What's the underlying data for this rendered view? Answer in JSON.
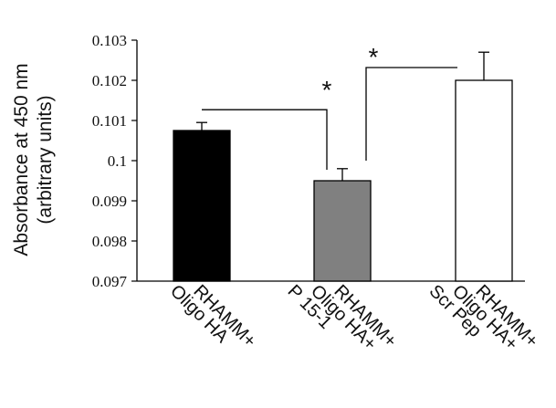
{
  "chart_data": {
    "type": "bar",
    "title": "",
    "ylabel": "Absorbance at 450 nm",
    "ylabel_sub": "(arbitrary units)",
    "xlabel": "",
    "ylim": [
      0.097,
      0.103
    ],
    "yticks": [
      "0.097",
      "0.098",
      "0.099",
      "0.1",
      "0.101",
      "0.102",
      "0.103"
    ],
    "categories": [
      [
        "RHAMM+",
        "Oligo HA"
      ],
      [
        "RHAMM+",
        "Oligo HA+",
        "P 15-1"
      ],
      [
        "RHAMM+",
        "Oligo HA+",
        "Scr Pep"
      ]
    ],
    "values": [
      0.10075,
      0.0995,
      0.102
    ],
    "errors": [
      0.0002,
      0.0003,
      0.0007
    ],
    "bar_colors": [
      "#000000",
      "#808080",
      "#ffffff"
    ],
    "grid": false,
    "significance": [
      {
        "from": 0,
        "to": 1,
        "label": "*"
      },
      {
        "from": 1,
        "to": 2,
        "label": "*"
      }
    ]
  }
}
